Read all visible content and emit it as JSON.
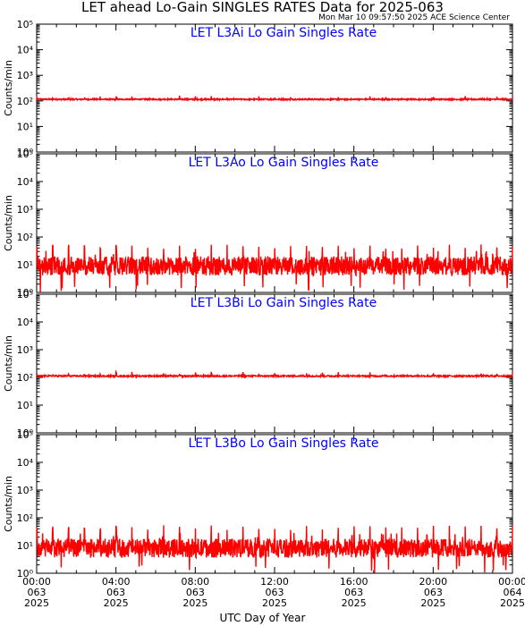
{
  "title": "LET ahead Lo-Gain SINGLES RATES Data for 2025-063",
  "timestamp": "Mon Mar 10 09:57:50 2025 ACE Science Center",
  "x_axis_title": "UTC Day of Year",
  "y_axis_label": "Counts/min",
  "colors": {
    "series": "#ff0000",
    "panel_title": "#0000ff",
    "axes": "#000000"
  },
  "x_ticks": [
    {
      "time": "00:00",
      "doy": "063",
      "year": "2025"
    },
    {
      "time": "04:00",
      "doy": "063",
      "year": "2025"
    },
    {
      "time": "08:00",
      "doy": "063",
      "year": "2025"
    },
    {
      "time": "12:00",
      "doy": "063",
      "year": "2025"
    },
    {
      "time": "16:00",
      "doy": "063",
      "year": "2025"
    },
    {
      "time": "20:00",
      "doy": "063",
      "year": "2025"
    },
    {
      "time": "00:00",
      "doy": "064",
      "year": "2025"
    }
  ],
  "chart_data": [
    {
      "type": "line",
      "title": "LET L3Ai Lo Gain Singles Rate",
      "ylabel": "Counts/min",
      "yscale": "log",
      "ylim": [
        1,
        100000
      ],
      "xlim_hours": [
        0,
        24
      ],
      "series": [
        {
          "typical": 115,
          "spikes": 135,
          "noise_factor": 1.06
        }
      ]
    },
    {
      "type": "line",
      "title": "LET L3Ao Lo Gain Singles Rate",
      "ylabel": "Counts/min",
      "yscale": "log",
      "ylim": [
        1,
        100000
      ],
      "xlim_hours": [
        0,
        24
      ],
      "series": [
        {
          "typical": 9,
          "spikes": 45,
          "noise_factor": 2.2
        }
      ]
    },
    {
      "type": "line",
      "title": "LET L3Bi Lo Gain Singles Rate",
      "ylabel": "Counts/min",
      "yscale": "log",
      "ylim": [
        1,
        100000
      ],
      "xlim_hours": [
        0,
        24
      ],
      "series": [
        {
          "typical": 112,
          "spikes": 135,
          "noise_factor": 1.06
        }
      ]
    },
    {
      "type": "line",
      "title": "LET L3Bo Lo Gain Singles Rate",
      "ylabel": "Counts/min",
      "yscale": "log",
      "ylim": [
        1,
        100000
      ],
      "xlim_hours": [
        0,
        24
      ],
      "series": [
        {
          "typical": 8,
          "spikes": 45,
          "noise_factor": 2.2
        }
      ]
    }
  ]
}
